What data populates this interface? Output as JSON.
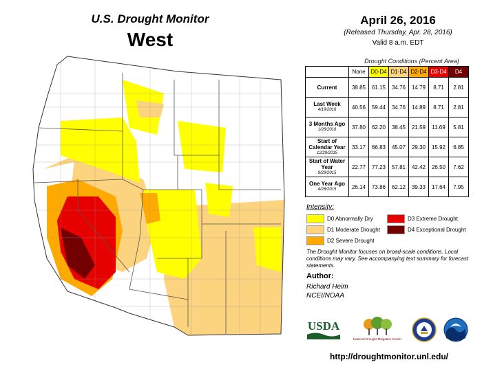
{
  "header": {
    "title": "U.S. Drought Monitor",
    "region": "West",
    "date": "April 26, 2016",
    "released": "(Released Thursday, Apr. 28, 2016)",
    "valid": "Valid 8 a.m. EDT"
  },
  "conditions_table": {
    "title": "Drought Conditions (Percent Area)",
    "columns": [
      "None",
      "D0-D4",
      "D1-D4",
      "D2-D4",
      "D3-D4",
      "D4"
    ],
    "rows": [
      {
        "label": "Current",
        "date": "",
        "values": [
          "38.85",
          "61.15",
          "34.76",
          "14.79",
          "8.71",
          "2.81"
        ]
      },
      {
        "label": "Last Week",
        "date": "4/19/2016",
        "values": [
          "40.56",
          "59.44",
          "34.76",
          "14.89",
          "8.71",
          "2.81"
        ]
      },
      {
        "label": "3 Months Ago",
        "date": "1/26/2016",
        "values": [
          "37.80",
          "62.20",
          "38.45",
          "21.59",
          "11.69",
          "5.81"
        ]
      },
      {
        "label": "Start of Calendar Year",
        "date": "12/29/2015",
        "values": [
          "33.17",
          "66.83",
          "45.07",
          "29.30",
          "15.92",
          "6.85"
        ]
      },
      {
        "label": "Start of Water Year",
        "date": "9/29/2015",
        "values": [
          "22.77",
          "77.23",
          "57.81",
          "42.42",
          "26.50",
          "7.62"
        ]
      },
      {
        "label": "One Year Ago",
        "date": "4/28/2015",
        "values": [
          "26.14",
          "73.86",
          "62.12",
          "39.33",
          "17.64",
          "7.95"
        ]
      }
    ]
  },
  "legend": {
    "title": "Intensity:",
    "items": [
      {
        "label": "D0 Abnormally Dry",
        "color": "#ffff00"
      },
      {
        "label": "D1 Moderate Drought",
        "color": "#fcd37f"
      },
      {
        "label": "D2 Severe Drought",
        "color": "#ffaa00"
      },
      {
        "label": "D3 Extreme Drought",
        "color": "#e60000"
      },
      {
        "label": "D4 Exceptional Drought",
        "color": "#730000"
      }
    ]
  },
  "note": "The Drought Monitor focuses on broad-scale conditions. Local conditions may vary. See accompanying text summary for forecast statements.",
  "author": {
    "heading": "Author:",
    "name": "Richard Heim",
    "org": "NCEI/NOAA"
  },
  "logos": {
    "usda": "USDA",
    "ndmc": "National Drought Mitigation Center"
  },
  "url": "http://droughtmonitor.unl.edu/",
  "map": {
    "region": "Western United States",
    "colors": {
      "D0": "#ffff00",
      "D1": "#fcd37f",
      "D2": "#ffaa00",
      "D3": "#e60000",
      "D4": "#730000",
      "none": "#ffffff"
    }
  }
}
